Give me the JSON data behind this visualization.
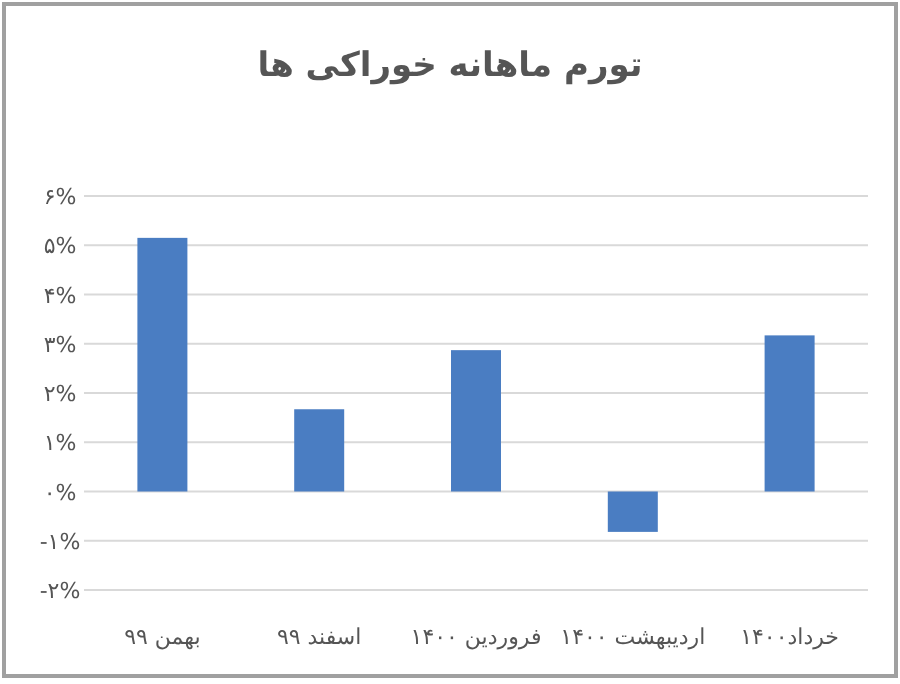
{
  "chart_data": {
    "type": "bar",
    "title": "تورم ماهانه خوراکی ها",
    "categories": [
      "بهمن ۹۹",
      "اسفند ۹۹",
      "فروردین ۱۴۰۰",
      "اردیبهشت ۱۴۰۰",
      "خرداد۱۴۰۰"
    ],
    "values": [
      5.15,
      1.67,
      2.87,
      -0.82,
      3.17
    ],
    "color": "#4a7dc2",
    "ylim": [
      -2,
      6
    ],
    "yticks": [
      {
        "value": -2,
        "label": "-۲%"
      },
      {
        "value": -1,
        "label": "-۱%"
      },
      {
        "value": 0,
        "label": "۰%"
      },
      {
        "value": 1,
        "label": "۱%"
      },
      {
        "value": 2,
        "label": "۲%"
      },
      {
        "value": 3,
        "label": "۳%"
      },
      {
        "value": 4,
        "label": "۴%"
      },
      {
        "value": 5,
        "label": "۵%"
      },
      {
        "value": 6,
        "label": "۶%"
      }
    ],
    "grid": "y"
  }
}
